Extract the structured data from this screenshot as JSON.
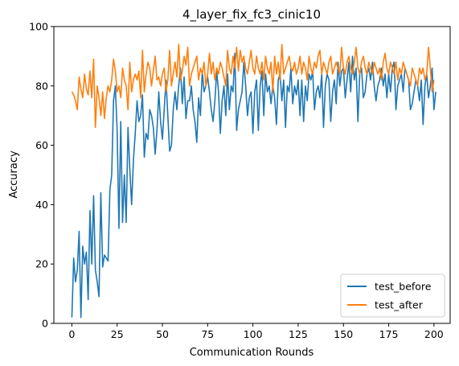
{
  "chart_data": {
    "type": "line",
    "title": "4_layer_fix_fc3_cinic10",
    "xlabel": "Communication Rounds",
    "ylabel": "Accuracy",
    "xlim": [
      -9.95,
      208.95
    ],
    "ylim": [
      0,
      100
    ],
    "xticks": [
      0,
      25,
      50,
      75,
      100,
      125,
      150,
      175,
      200
    ],
    "yticks": [
      0,
      20,
      40,
      60,
      80,
      100
    ],
    "grid": false,
    "legend_position": "lower right",
    "series": [
      {
        "name": "test_before",
        "color": "#1f77b4",
        "values": [
          2,
          22,
          14,
          18,
          31,
          2,
          26,
          20,
          24,
          8,
          38,
          20,
          43,
          18,
          14,
          9,
          44,
          19,
          23,
          22,
          21,
          45,
          50,
          75,
          80,
          65,
          32,
          68,
          34,
          50,
          34,
          66,
          52,
          40,
          55,
          64,
          75,
          68,
          70,
          77,
          56,
          64,
          62,
          72,
          70,
          66,
          57,
          65,
          78,
          68,
          62,
          72,
          82,
          70,
          58,
          60,
          72,
          78,
          72,
          80,
          86,
          74,
          83,
          69,
          75,
          75,
          80,
          72,
          68,
          61,
          76,
          70,
          85,
          78,
          80,
          83,
          78,
          72,
          68,
          75,
          85,
          78,
          64,
          75,
          80,
          70,
          84,
          72,
          80,
          78,
          91,
          65,
          72,
          75,
          78,
          88,
          80,
          70,
          76,
          78,
          64,
          78,
          82,
          65,
          80,
          85,
          70,
          84,
          78,
          80,
          74,
          80,
          76,
          67,
          82,
          84,
          75,
          82,
          66,
          80,
          78,
          86,
          74,
          80,
          77,
          82,
          70,
          82,
          68,
          80,
          75,
          84,
          82,
          85,
          72,
          78,
          80,
          76,
          84,
          66,
          80,
          84,
          82,
          68,
          78,
          82,
          74,
          88,
          80,
          85,
          86,
          76,
          82,
          88,
          78,
          90,
          82,
          86,
          68,
          84,
          86,
          76,
          78,
          84,
          86,
          82,
          88,
          80,
          75,
          80,
          82,
          86,
          80,
          84,
          76,
          84,
          78,
          86,
          88,
          72,
          80,
          82,
          84,
          78,
          86,
          84,
          82,
          72,
          74,
          78,
          82,
          80,
          75,
          82,
          67,
          80,
          84,
          76,
          80,
          86,
          72,
          78
        ]
      },
      {
        "name": "test_after",
        "color": "#ff7f0e",
        "values": [
          78,
          77,
          75,
          72,
          83,
          79,
          76,
          84,
          79,
          77,
          85,
          76,
          89,
          66,
          80,
          76,
          70,
          78,
          69,
          76,
          80,
          78,
          82,
          89,
          85,
          78,
          80,
          76,
          86,
          82,
          80,
          72,
          88,
          78,
          82,
          84,
          82,
          85,
          76,
          92,
          78,
          84,
          88,
          86,
          80,
          85,
          90,
          82,
          83,
          80,
          84,
          86,
          78,
          82,
          92,
          80,
          84,
          88,
          83,
          94,
          82,
          85,
          90,
          87,
          93,
          80,
          84,
          86,
          88,
          90,
          82,
          86,
          84,
          88,
          80,
          84,
          91,
          84,
          88,
          82,
          86,
          84,
          88,
          86,
          83,
          80,
          92,
          86,
          84,
          90,
          86,
          93,
          85,
          92,
          88,
          90,
          86,
          84,
          88,
          92,
          86,
          84,
          90,
          86,
          84,
          88,
          82,
          90,
          86,
          84,
          88,
          78,
          90,
          84,
          88,
          82,
          94,
          84,
          86,
          88,
          90,
          86,
          85,
          88,
          84,
          86,
          90,
          84,
          88,
          86,
          82,
          90,
          86,
          84,
          88,
          86,
          90,
          92,
          84,
          88,
          86,
          84,
          88,
          90,
          84,
          86,
          88,
          86,
          84,
          93,
          86,
          84,
          88,
          90,
          86,
          84,
          88,
          93,
          86,
          84,
          88,
          90,
          86,
          84,
          88,
          86,
          84,
          88,
          86,
          84,
          86,
          82,
          88,
          91,
          86,
          84,
          88,
          86,
          84,
          88,
          82,
          86,
          84,
          88,
          86,
          84,
          82,
          80,
          86,
          84,
          82,
          80,
          86,
          84,
          86,
          82,
          84,
          93,
          86,
          78,
          82
        ]
      }
    ]
  }
}
